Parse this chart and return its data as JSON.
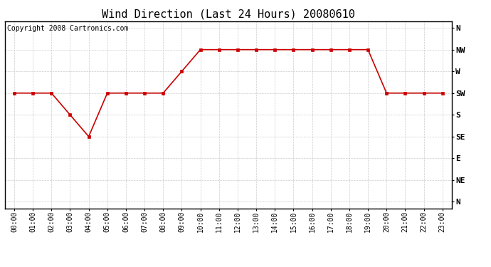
{
  "title": "Wind Direction (Last 24 Hours) 20080610",
  "copyright": "Copyright 2008 Cartronics.com",
  "hours": [
    "00:00",
    "01:00",
    "02:00",
    "03:00",
    "04:00",
    "05:00",
    "06:00",
    "07:00",
    "08:00",
    "09:00",
    "10:00",
    "11:00",
    "12:00",
    "13:00",
    "14:00",
    "15:00",
    "16:00",
    "17:00",
    "18:00",
    "19:00",
    "20:00",
    "21:00",
    "22:00",
    "23:00"
  ],
  "x_values": [
    0,
    1,
    2,
    3,
    4,
    5,
    6,
    7,
    8,
    9,
    10,
    11,
    12,
    13,
    14,
    15,
    16,
    17,
    18,
    19,
    20,
    21,
    22,
    23
  ],
  "y_values": [
    5,
    5,
    5,
    4,
    3,
    5,
    5,
    5,
    5,
    6,
    7,
    7,
    7,
    7,
    7,
    7,
    7,
    7,
    7,
    7,
    5,
    5,
    5,
    5
  ],
  "ytick_positions": [
    8,
    7,
    6,
    5,
    4,
    3,
    2,
    1,
    0
  ],
  "ytick_labels": [
    "N",
    "NW",
    "W",
    "SW",
    "S",
    "SE",
    "E",
    "NE",
    "N"
  ],
  "line_color": "#cc0000",
  "marker": "s",
  "marker_size": 3,
  "marker_color": "#cc0000",
  "background_color": "#ffffff",
  "plot_bg_color": "#ffffff",
  "grid_color": "#c0c0c0",
  "title_fontsize": 11,
  "copyright_fontsize": 7,
  "xlabel_fontsize": 7,
  "ylabel_fontsize": 8,
  "ylim": [
    -0.3,
    8.3
  ],
  "xlim": [
    -0.5,
    23.5
  ]
}
